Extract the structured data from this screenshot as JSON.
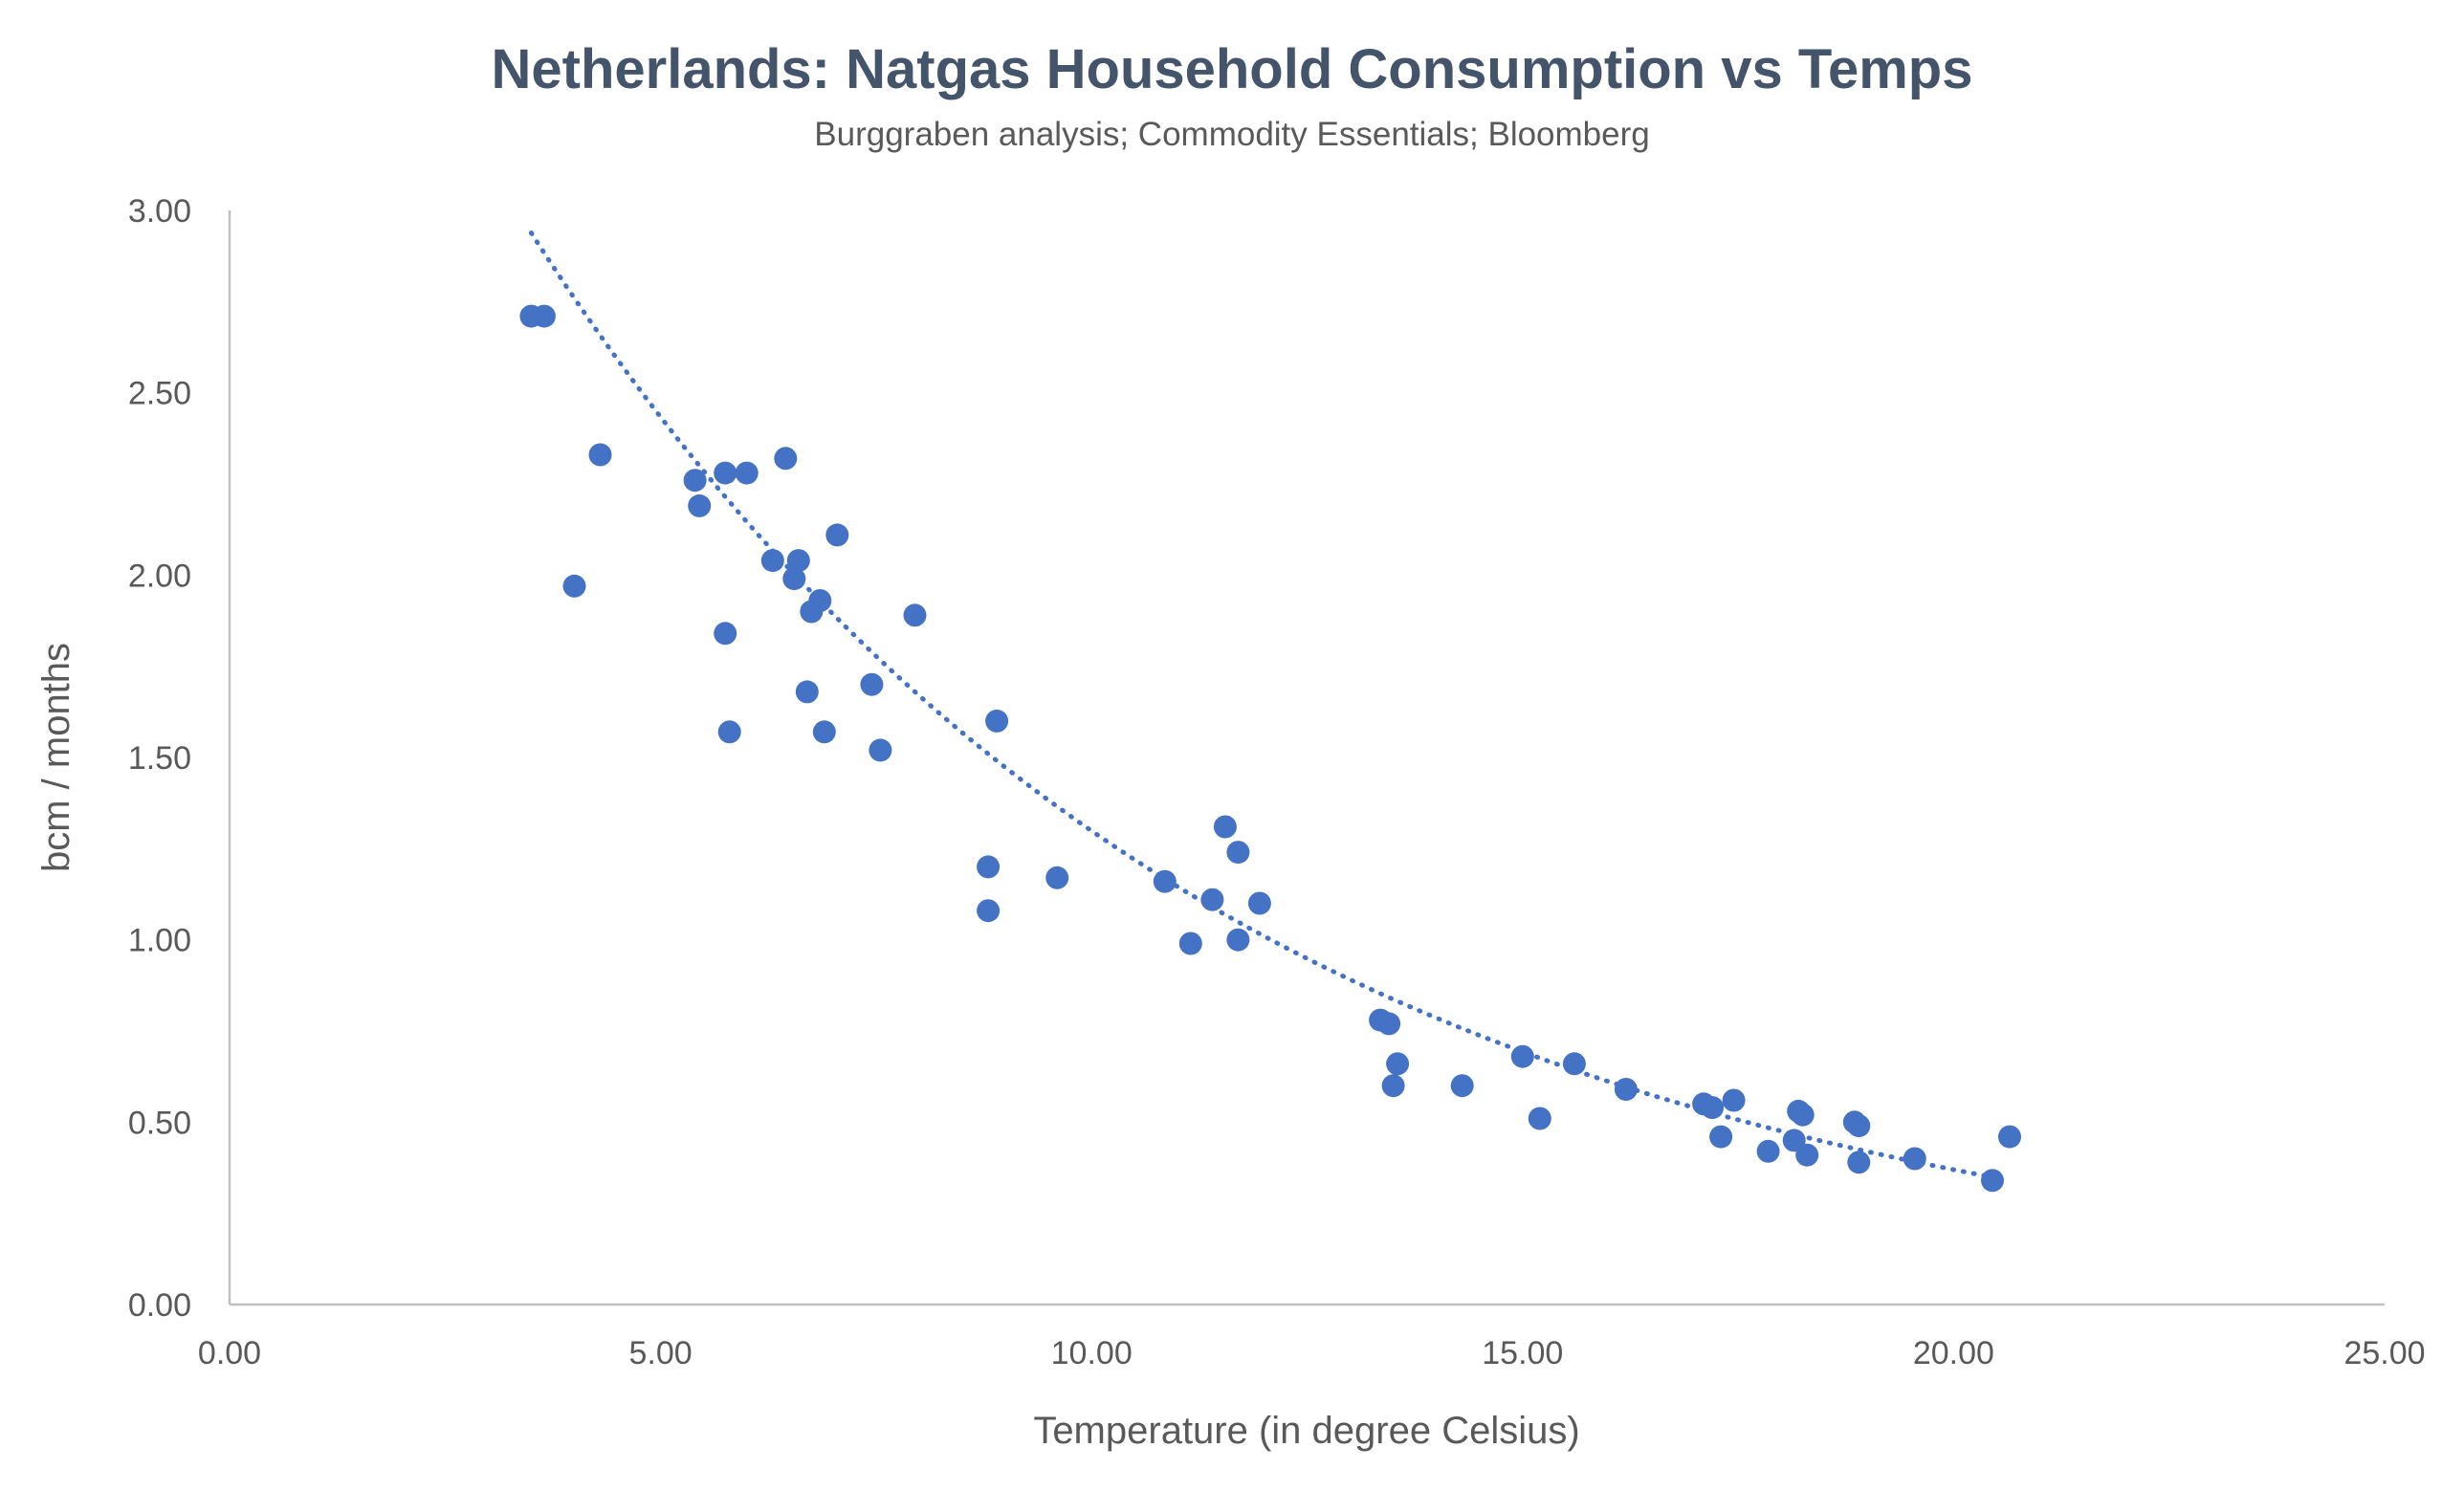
{
  "chart_data": {
    "type": "scatter",
    "title": "Netherlands: Natgas Household Consumption vs Temps",
    "subtitle": "Burggraben analysis; Commodity Essentials; Bloomberg",
    "xlabel": "Temperature (in degree Celsius)",
    "ylabel": "bcm / months",
    "xlim": [
      0,
      25
    ],
    "ylim": [
      0,
      3
    ],
    "x_ticks": [
      "0.00",
      "5.00",
      "10.00",
      "15.00",
      "20.00",
      "25.00"
    ],
    "y_ticks": [
      "0.00",
      "0.50",
      "1.00",
      "1.50",
      "2.00",
      "2.50",
      "3.00"
    ],
    "grid": false,
    "legend": "none",
    "marker_color": "#4472c4",
    "trendline": {
      "type": "exponential",
      "style": "dotted",
      "color": "#4472c4",
      "x_range": [
        3.5,
        20.5
      ],
      "a": 4.56,
      "b": -0.1256
    },
    "series": [
      {
        "points": [
          [
            3.5,
            2.71
          ],
          [
            3.65,
            2.71
          ],
          [
            4.0,
            1.97
          ],
          [
            4.3,
            2.33
          ],
          [
            5.4,
            2.26
          ],
          [
            5.45,
            2.19
          ],
          [
            5.75,
            2.28
          ],
          [
            5.75,
            1.84
          ],
          [
            5.8,
            1.57
          ],
          [
            6.0,
            2.28
          ],
          [
            6.3,
            2.04
          ],
          [
            6.45,
            2.32
          ],
          [
            6.55,
            1.99
          ],
          [
            6.6,
            2.04
          ],
          [
            6.7,
            1.68
          ],
          [
            6.75,
            1.9
          ],
          [
            6.85,
            1.93
          ],
          [
            6.9,
            1.57
          ],
          [
            7.05,
            2.11
          ],
          [
            7.45,
            1.7
          ],
          [
            7.55,
            1.52
          ],
          [
            7.95,
            1.89
          ],
          [
            8.8,
            1.2
          ],
          [
            8.8,
            1.08
          ],
          [
            8.9,
            1.6
          ],
          [
            9.6,
            1.17
          ],
          [
            10.85,
            1.16
          ],
          [
            11.15,
            0.99
          ],
          [
            11.4,
            1.11
          ],
          [
            11.55,
            1.31
          ],
          [
            11.7,
            1.24
          ],
          [
            11.7,
            1.0
          ],
          [
            11.95,
            1.1
          ],
          [
            13.35,
            0.78
          ],
          [
            13.45,
            0.77
          ],
          [
            13.5,
            0.6
          ],
          [
            13.55,
            0.66
          ],
          [
            14.3,
            0.6
          ],
          [
            15.0,
            0.68
          ],
          [
            15.2,
            0.51
          ],
          [
            15.6,
            0.66
          ],
          [
            16.2,
            0.59
          ],
          [
            17.1,
            0.55
          ],
          [
            17.2,
            0.54
          ],
          [
            17.3,
            0.46
          ],
          [
            17.45,
            0.56
          ],
          [
            17.85,
            0.42
          ],
          [
            18.15,
            0.45
          ],
          [
            18.2,
            0.53
          ],
          [
            18.25,
            0.52
          ],
          [
            18.3,
            0.41
          ],
          [
            18.85,
            0.5
          ],
          [
            18.9,
            0.49
          ],
          [
            18.9,
            0.39
          ],
          [
            19.55,
            0.4
          ],
          [
            20.45,
            0.34
          ],
          [
            20.65,
            0.46
          ]
        ]
      }
    ]
  }
}
